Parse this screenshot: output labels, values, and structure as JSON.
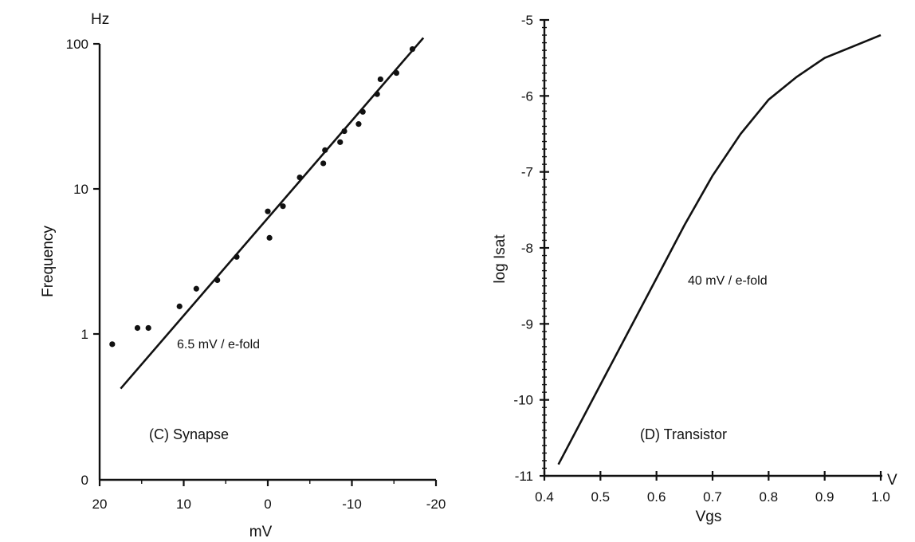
{
  "chart_data": [
    {
      "type": "scatter",
      "panel_label": "(C) Synapse",
      "xlabel": "mV",
      "ylabel": "Frequency",
      "yunit": "Hz",
      "x_reversed": true,
      "xlim": [
        20,
        -20
      ],
      "x_ticks": [
        20,
        10,
        0,
        -10,
        -20
      ],
      "y_scale": "log",
      "y_ticks": [
        1,
        10,
        100
      ],
      "y_tick_labels": [
        "1",
        "10",
        "100"
      ],
      "y_zero_label": "0",
      "annotation": "6.5 mV / e-fold",
      "grid": false,
      "series": [
        {
          "kind": "points",
          "x": [
            18.5,
            15.5,
            14.2,
            10.5,
            8.5,
            6,
            3.7,
            -0.2,
            0,
            -1.8,
            -3.8,
            -6.6,
            -6.8,
            -8.6,
            -9.1,
            -10.8,
            -11.3,
            -13,
            -13.4,
            -15.3,
            -17.2
          ],
          "y": [
            0.85,
            1.1,
            1.1,
            1.55,
            2.05,
            2.35,
            3.4,
            4.6,
            7.0,
            7.6,
            12,
            15,
            18.5,
            21,
            25,
            28,
            34,
            45,
            57,
            63,
            92
          ]
        },
        {
          "kind": "fit_line",
          "x": [
            17.5,
            -18.5
          ],
          "y": [
            0.42,
            110
          ]
        }
      ]
    },
    {
      "type": "line",
      "panel_label": "(D) Transistor",
      "xlabel": "Vgs",
      "xunit": "V",
      "ylabel": "log Isat",
      "xlim": [
        0.4,
        1.0
      ],
      "ylim": [
        -11,
        -5
      ],
      "x_ticks": [
        0.4,
        0.5,
        0.6,
        0.7,
        0.8,
        0.9,
        1.0
      ],
      "x_tick_labels": [
        "0.4",
        "0.5",
        "0.6",
        "0.7",
        "0.8",
        "0.9",
        "1.0"
      ],
      "y_ticks": [
        -11,
        -10,
        -9,
        -8,
        -7,
        -6,
        -5
      ],
      "annotation": "40 mV / e-fold",
      "grid": false,
      "series": [
        {
          "x": [
            0.425,
            0.45,
            0.5,
            0.55,
            0.6,
            0.65,
            0.7,
            0.75,
            0.8,
            0.85,
            0.9,
            0.95,
            1.0
          ],
          "y": [
            -10.85,
            -10.5,
            -9.8,
            -9.1,
            -8.4,
            -7.7,
            -7.05,
            -6.5,
            -6.05,
            -5.75,
            -5.5,
            -5.35,
            -5.2
          ]
        }
      ]
    }
  ]
}
